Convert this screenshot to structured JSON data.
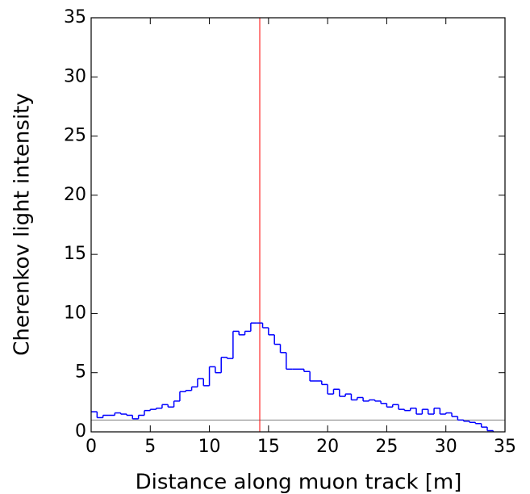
{
  "chart_data": {
    "type": "histogram",
    "xlabel": "Distance along muon track  [m]",
    "ylabel": "Cherenkov light intensity",
    "bins": [
      0,
      0.5,
      1,
      1.5,
      2,
      2.5,
      3,
      3.5,
      4,
      4.5,
      5,
      5.5,
      6,
      6.5,
      7,
      7.5,
      8,
      8.5,
      9,
      9.5,
      10,
      10.5,
      11,
      11.5,
      12,
      12.5,
      13,
      13.5,
      14,
      14.5,
      15,
      15.5,
      16,
      16.5,
      17,
      17.5,
      18,
      18.5,
      19,
      19.5,
      20,
      20.5,
      21,
      21.5,
      22,
      22.5,
      23,
      23.5,
      24,
      24.5,
      25,
      25.5,
      26,
      26.5,
      27,
      27.5,
      28,
      28.5,
      29,
      29.5,
      30,
      30.5,
      31,
      31.5,
      32,
      32.5,
      33,
      33.5,
      34
    ],
    "counts": [
      1.7,
      1.2,
      1.4,
      1.4,
      1.6,
      1.5,
      1.4,
      1.1,
      1.4,
      1.8,
      1.9,
      2.0,
      2.3,
      2.1,
      2.6,
      3.4,
      3.5,
      3.8,
      4.5,
      3.9,
      5.5,
      5.0,
      6.3,
      6.2,
      8.5,
      8.2,
      8.5,
      9.2,
      9.2,
      8.8,
      8.2,
      7.4,
      6.7,
      5.3,
      5.3,
      5.3,
      5.1,
      4.3,
      4.3,
      4.0,
      3.2,
      3.6,
      3.0,
      3.2,
      2.7,
      2.9,
      2.6,
      2.7,
      2.6,
      2.4,
      2.1,
      2.3,
      1.9,
      1.8,
      2.0,
      1.5,
      1.9,
      1.5,
      2.0,
      1.5,
      1.6,
      1.3,
      1.0,
      0.9,
      0.8,
      0.7,
      0.4,
      0.1
    ],
    "color": "#0000ff",
    "vline": {
      "x": 14.26,
      "color": "#ff0000"
    },
    "hline": {
      "y": 1,
      "color": "#808080"
    },
    "xlim": [
      0,
      35
    ],
    "xticks": [
      0,
      5,
      10,
      15,
      20,
      25,
      30,
      35
    ],
    "ylim": [
      0,
      35
    ],
    "yticks": [
      0,
      5,
      10,
      15,
      20,
      25,
      30,
      35
    ]
  }
}
